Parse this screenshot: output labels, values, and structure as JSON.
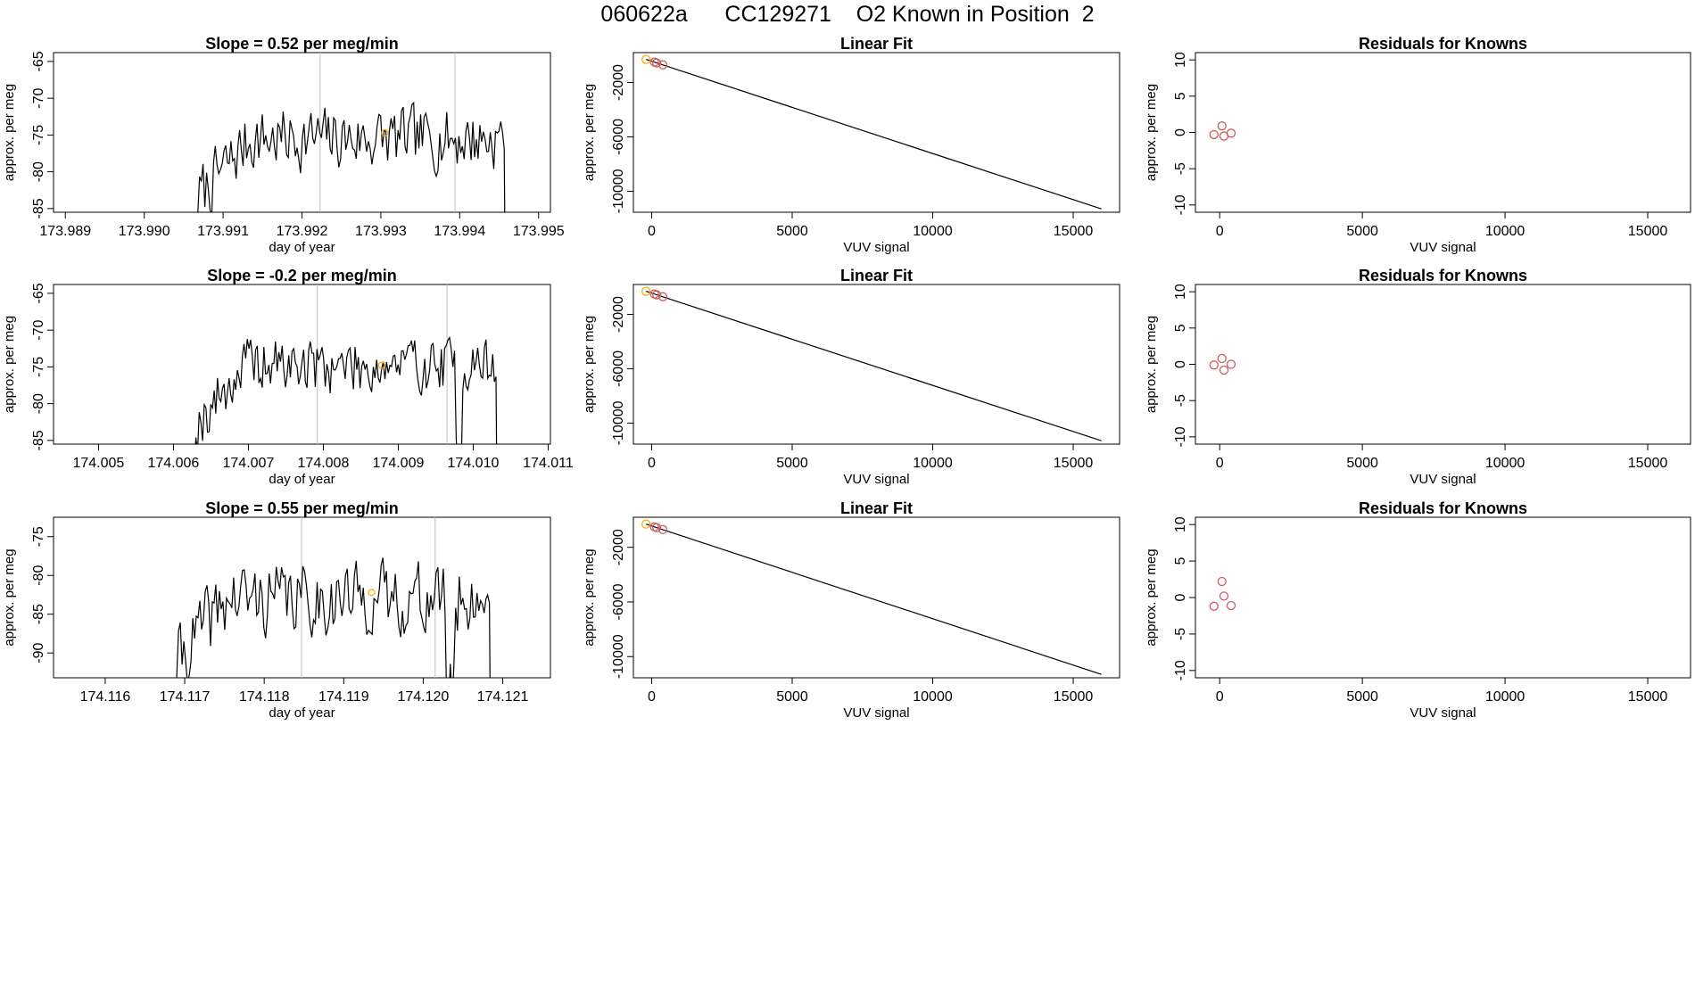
{
  "page": {
    "title": "060622a      CC129271    O2 Known in Position  2"
  },
  "colors": {
    "line": "#000000",
    "frame": "#000000",
    "vline": "#bebebe",
    "known_point": "#cd5c5c",
    "highlight_point": "#ffa500"
  },
  "chart_data": [
    {
      "type": "line",
      "title": "Slope =  0.52  per meg/min",
      "xlabel": "day of year",
      "ylabel": "approx. per meg",
      "xlim": [
        173.98885,
        173.99515
      ],
      "ylim": [
        -85.5,
        -63.8
      ],
      "xticks": [
        173.989,
        173.99,
        173.991,
        173.992,
        173.993,
        173.994,
        173.995
      ],
      "xtick_labels": [
        "173.989",
        "173.990",
        "173.991",
        "173.992",
        "173.993",
        "173.994",
        "173.995"
      ],
      "yticks": [
        -85,
        -80,
        -75,
        -70,
        -65
      ],
      "ytick_labels": [
        "-85",
        "-80",
        "-75",
        "-70",
        "-65"
      ],
      "vlines": [
        173.99223,
        173.99394
      ],
      "series": [
        {
          "values": []
        }
      ],
      "trace": {
        "x_start": 173.99068,
        "x_end": 173.99463,
        "n": 180,
        "seed": 7,
        "mean": -75.5,
        "amp": 5.5,
        "rise_to": 0.17
      },
      "highlight": {
        "x": 173.99305,
        "y": -74.7
      }
    },
    {
      "type": "line",
      "x": [
        -200,
        16000
      ],
      "y": [
        -300,
        -11300
      ],
      "title": "Linear Fit",
      "xlabel": "VUV signal",
      "ylabel": "approx. per meg",
      "xlim": [
        -650,
        16650
      ],
      "ylim": [
        -11550,
        200
      ],
      "xticks": [
        0,
        5000,
        10000,
        15000
      ],
      "xtick_labels": [
        "0",
        "5000",
        "10000",
        "15000"
      ],
      "yticks": [
        -10000,
        -6000,
        -2000
      ],
      "ytick_labels": [
        "-10000",
        "-6000",
        "-2000"
      ],
      "points": [
        {
          "x": -200,
          "y": -300,
          "color": "highlight"
        },
        {
          "x": 100,
          "y": -500,
          "color": "known"
        },
        {
          "x": 180,
          "y": -560,
          "color": "known"
        },
        {
          "x": 400,
          "y": -700,
          "color": "known"
        }
      ]
    },
    {
      "type": "scatter",
      "title": "Residuals for Knowns",
      "xlabel": "VUV signal",
      "ylabel": "approx. per meg",
      "xlim": [
        -850,
        16500
      ],
      "ylim": [
        -11,
        11
      ],
      "xticks": [
        0,
        5000,
        10000,
        15000
      ],
      "xtick_labels": [
        "0",
        "5000",
        "10000",
        "15000"
      ],
      "yticks": [
        -10,
        -5,
        0,
        5,
        10
      ],
      "ytick_labels": [
        "-10",
        "-5",
        "0",
        "5",
        "10"
      ],
      "points": [
        {
          "x": -200,
          "y": -0.3
        },
        {
          "x": 80,
          "y": 0.9
        },
        {
          "x": 150,
          "y": -0.5
        },
        {
          "x": 400,
          "y": -0.1
        }
      ]
    },
    {
      "type": "line",
      "title": "Slope =  -0.2  per meg/min",
      "xlabel": "day of year",
      "ylabel": "approx. per meg",
      "xlim": [
        174.0044,
        174.01103
      ],
      "ylim": [
        -85.5,
        -63.8
      ],
      "xticks": [
        174.005,
        174.006,
        174.007,
        174.008,
        174.009,
        174.01,
        174.011
      ],
      "xtick_labels": [
        "174.005",
        "174.006",
        "174.007",
        "174.008",
        "174.009",
        "174.010",
        "174.011"
      ],
      "yticks": [
        -85,
        -80,
        -75,
        -70,
        -65
      ],
      "ytick_labels": [
        "-85",
        "-80",
        "-75",
        "-70",
        "-65"
      ],
      "vlines": [
        174.00792,
        174.00965
      ],
      "series": [
        {
          "values": []
        }
      ],
      "trace": {
        "x_start": 174.0063,
        "x_end": 174.01037,
        "n": 185,
        "seed": 19,
        "mean": -74.8,
        "amp": 5.0,
        "rise_to": 0.16,
        "dip_at": 0.86
      },
      "highlight": {
        "x": 174.00878,
        "y": -74.8
      }
    },
    {
      "type": "line",
      "x": [
        -200,
        16000
      ],
      "y": [
        -300,
        -11300
      ],
      "title": "Linear Fit",
      "xlabel": "VUV signal",
      "ylabel": "approx. per meg",
      "xlim": [
        -650,
        16650
      ],
      "ylim": [
        -11550,
        200
      ],
      "xticks": [
        0,
        5000,
        10000,
        15000
      ],
      "xtick_labels": [
        "0",
        "5000",
        "10000",
        "15000"
      ],
      "yticks": [
        -10000,
        -6000,
        -2000
      ],
      "ytick_labels": [
        "-10000",
        "-6000",
        "-2000"
      ],
      "points": [
        {
          "x": -200,
          "y": -300,
          "color": "highlight"
        },
        {
          "x": 100,
          "y": -500,
          "color": "known"
        },
        {
          "x": 180,
          "y": -560,
          "color": "known"
        },
        {
          "x": 400,
          "y": -700,
          "color": "known"
        }
      ]
    },
    {
      "type": "scatter",
      "title": "Residuals for Knowns",
      "xlabel": "VUV signal",
      "ylabel": "approx. per meg",
      "xlim": [
        -850,
        16500
      ],
      "ylim": [
        -11,
        11
      ],
      "xticks": [
        0,
        5000,
        10000,
        15000
      ],
      "xtick_labels": [
        "0",
        "5000",
        "10000",
        "15000"
      ],
      "yticks": [
        -10,
        -5,
        0,
        5,
        10
      ],
      "ytick_labels": [
        "-10",
        "-5",
        "0",
        "5",
        "10"
      ],
      "points": [
        {
          "x": -200,
          "y": -0.1
        },
        {
          "x": 80,
          "y": 0.8
        },
        {
          "x": 150,
          "y": -0.8
        },
        {
          "x": 400,
          "y": 0.0
        }
      ]
    },
    {
      "type": "line",
      "title": "Slope =  0.55  per meg/min",
      "xlabel": "day of year",
      "ylabel": "approx. per meg",
      "xlim": [
        174.11535,
        174.1216
      ],
      "ylim": [
        -93.2,
        -72.5
      ],
      "xticks": [
        174.116,
        174.117,
        174.118,
        174.119,
        174.12,
        174.121
      ],
      "xtick_labels": [
        "174.116",
        "174.117",
        "174.118",
        "174.119",
        "174.120",
        "174.121"
      ],
      "yticks": [
        -90,
        -85,
        -80,
        -75
      ],
      "ytick_labels": [
        "-90",
        "-85",
        "-80",
        "-75"
      ],
      "vlines": [
        174.11847,
        174.12015
      ],
      "series": [
        {
          "values": []
        }
      ],
      "trace": {
        "x_start": 174.1169,
        "x_end": 174.1209,
        "n": 180,
        "seed": 41,
        "mean": -83.0,
        "amp": 6.0,
        "rise_to": 0.16,
        "dip_at": 0.86
      },
      "highlight": {
        "x": 174.11935,
        "y": -82.2
      }
    },
    {
      "type": "line",
      "x": [
        -200,
        16000
      ],
      "y": [
        -300,
        -11300
      ],
      "title": "Linear Fit",
      "xlabel": "VUV signal",
      "ylabel": "approx. per meg",
      "xlim": [
        -650,
        16650
      ],
      "ylim": [
        -11550,
        200
      ],
      "xticks": [
        0,
        5000,
        10000,
        15000
      ],
      "xtick_labels": [
        "0",
        "5000",
        "10000",
        "15000"
      ],
      "yticks": [
        -10000,
        -6000,
        -2000
      ],
      "ytick_labels": [
        "-10000",
        "-6000",
        "-2000"
      ],
      "points": [
        {
          "x": -200,
          "y": -300,
          "color": "highlight"
        },
        {
          "x": 100,
          "y": -500,
          "color": "known"
        },
        {
          "x": 180,
          "y": -560,
          "color": "known"
        },
        {
          "x": 400,
          "y": -700,
          "color": "known"
        }
      ]
    },
    {
      "type": "scatter",
      "title": "Residuals for Knowns",
      "xlabel": "VUV signal",
      "ylabel": "approx. per meg",
      "xlim": [
        -850,
        16500
      ],
      "ylim": [
        -11,
        11
      ],
      "xticks": [
        0,
        5000,
        10000,
        15000
      ],
      "xtick_labels": [
        "0",
        "5000",
        "10000",
        "15000"
      ],
      "yticks": [
        -10,
        -5,
        0,
        5,
        10
      ],
      "ytick_labels": [
        "-10",
        "-5",
        "0",
        "5",
        "10"
      ],
      "points": [
        {
          "x": -200,
          "y": -1.2
        },
        {
          "x": 80,
          "y": 2.2
        },
        {
          "x": 150,
          "y": 0.2
        },
        {
          "x": 400,
          "y": -1.1
        }
      ]
    }
  ]
}
